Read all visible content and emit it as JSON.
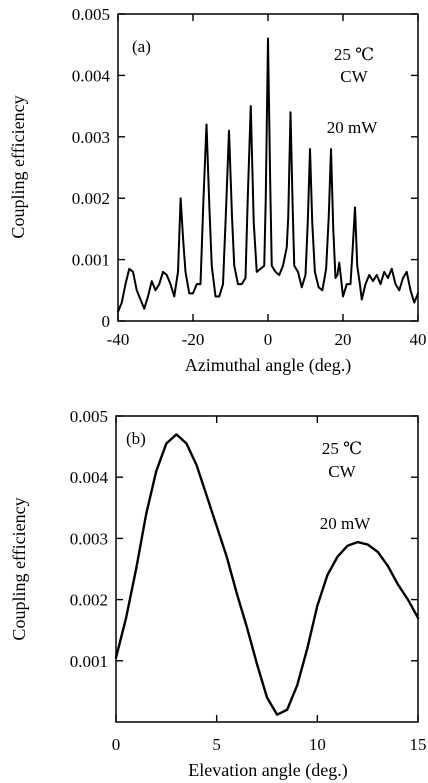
{
  "chart_data": [
    {
      "type": "line",
      "panel_label": "(a)",
      "xlabel": "Azimuthal angle (deg.)",
      "ylabel": "Coupling efficiency",
      "xlim": [
        -40,
        40
      ],
      "ylim": [
        0,
        0.005
      ],
      "xticks": [
        "-40",
        "-20",
        "0",
        "20",
        "40"
      ],
      "yticks": [
        "0",
        "0.001",
        "0.002",
        "0.003",
        "0.004",
        "0.005"
      ],
      "annotations": [
        "25 ℃",
        "CW",
        "20 mW"
      ],
      "grid": false,
      "x": [
        -40,
        -39,
        -38,
        -37,
        -36,
        -35,
        -34,
        -33,
        -32,
        -31,
        -30,
        -29,
        -28,
        -27,
        -26,
        -25,
        -24,
        -23.3,
        -22.6,
        -22,
        -21,
        -20,
        -19,
        -18,
        -17.2,
        -16.4,
        -15.6,
        -15,
        -14,
        -13,
        -12,
        -11.2,
        -10.4,
        -9.6,
        -9,
        -8,
        -7,
        -6,
        -5.4,
        -4.6,
        -3.8,
        -3,
        -2,
        -1,
        -0.6,
        0,
        0.6,
        1,
        2,
        3,
        4,
        5,
        5.4,
        6,
        6.6,
        7,
        8,
        9,
        10,
        10.6,
        11.2,
        11.8,
        12.5,
        13.5,
        14.5,
        15.5,
        16.2,
        16.8,
        17.4,
        18,
        18.5,
        19,
        20,
        21,
        22,
        22.6,
        23.2,
        23.8,
        24.5,
        25,
        26,
        27,
        28,
        29,
        30,
        31,
        32,
        33,
        34,
        35,
        36,
        37,
        38,
        39,
        40
      ],
      "y": [
        0.00015,
        0.0003,
        0.0006,
        0.00085,
        0.0008,
        0.0005,
        0.00035,
        0.0002,
        0.0004,
        0.00065,
        0.0005,
        0.0006,
        0.0008,
        0.00075,
        0.0006,
        0.0004,
        0.0008,
        0.002,
        0.0013,
        0.0008,
        0.00045,
        0.00045,
        0.0006,
        0.0006,
        0.002,
        0.0032,
        0.0018,
        0.0009,
        0.0004,
        0.0004,
        0.0006,
        0.0018,
        0.0031,
        0.0017,
        0.0009,
        0.0006,
        0.0006,
        0.0007,
        0.002,
        0.0035,
        0.0016,
        0.0008,
        0.00085,
        0.0009,
        0.002,
        0.0046,
        0.0022,
        0.0009,
        0.0008,
        0.00075,
        0.0009,
        0.0012,
        0.0017,
        0.0034,
        0.0018,
        0.0009,
        0.0008,
        0.00055,
        0.00075,
        0.0016,
        0.0028,
        0.0016,
        0.0008,
        0.00055,
        0.0005,
        0.00085,
        0.0017,
        0.0028,
        0.0015,
        0.0007,
        0.00075,
        0.00095,
        0.0004,
        0.0006,
        0.0006,
        0.0012,
        0.00185,
        0.0009,
        0.0006,
        0.00035,
        0.0006,
        0.00075,
        0.00065,
        0.00075,
        0.0006,
        0.0008,
        0.0007,
        0.00085,
        0.0006,
        0.0005,
        0.0007,
        0.0008,
        0.0005,
        0.0003,
        0.00045
      ]
    },
    {
      "type": "line",
      "panel_label": "(b)",
      "xlabel": "Elevation angle (deg.)",
      "ylabel": "Coupling efficiency",
      "xlim": [
        0,
        15
      ],
      "ylim": [
        0,
        0.005
      ],
      "xticks": [
        "0",
        "5",
        "10",
        "15"
      ],
      "yticks": [
        "0.001",
        "0.002",
        "0.003",
        "0.004",
        "0.005"
      ],
      "annotations": [
        "25 ℃",
        "CW",
        "20 mW"
      ],
      "grid": false,
      "x": [
        0,
        0.5,
        1,
        1.5,
        2,
        2.5,
        3,
        3.5,
        4,
        4.5,
        5,
        5.5,
        6,
        6.5,
        7,
        7.5,
        8,
        8.5,
        9,
        9.5,
        10,
        10.5,
        11,
        11.5,
        12,
        12.5,
        13,
        13.5,
        14,
        14.5,
        15
      ],
      "y": [
        0.00105,
        0.0017,
        0.0025,
        0.0034,
        0.0041,
        0.00455,
        0.0047,
        0.00455,
        0.0042,
        0.0037,
        0.0032,
        0.0027,
        0.0021,
        0.00155,
        0.00095,
        0.0004,
        0.00012,
        0.0002,
        0.0006,
        0.0012,
        0.0019,
        0.0024,
        0.0027,
        0.00288,
        0.00294,
        0.0029,
        0.00278,
        0.00255,
        0.00225,
        0.002,
        0.0017
      ]
    }
  ]
}
